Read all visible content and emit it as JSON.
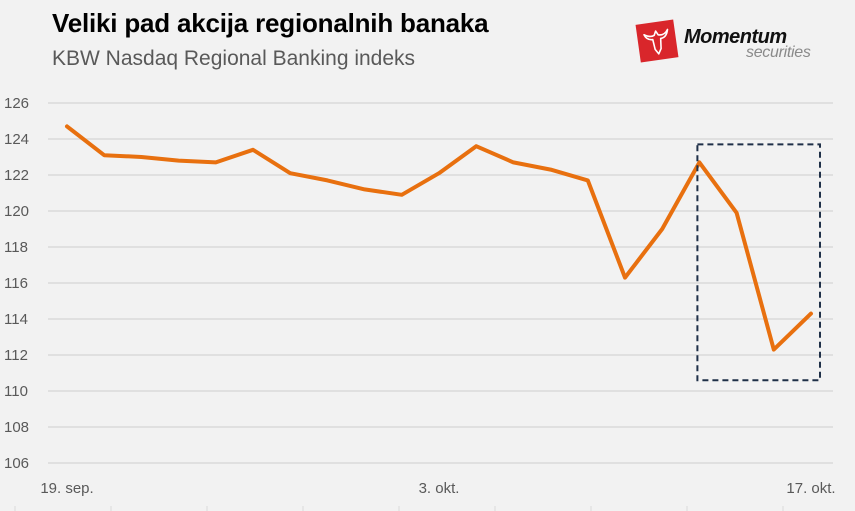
{
  "header": {
    "title": "Veliki pad akcija regionalnih banaka",
    "subtitle": "KBW Nasdaq Regional Banking indeks"
  },
  "logo": {
    "name": "Momentum",
    "sub": "securities",
    "mark_color": "#d9262b"
  },
  "colors": {
    "line": "#e8700f",
    "grid": "#d9d9d9",
    "highlight_box": "#1f3048",
    "background": "#f2f2f2"
  },
  "chart_data": {
    "type": "line",
    "title": "Veliki pad akcija regionalnih banaka",
    "subtitle": "KBW Nasdaq Regional Banking indeks",
    "xlabel": "",
    "ylabel": "",
    "ylim": [
      106,
      126
    ],
    "yticks": [
      106,
      108,
      110,
      112,
      114,
      116,
      118,
      120,
      122,
      124,
      126
    ],
    "grid": true,
    "legend": "none",
    "x_tick_labels": [
      {
        "index": 0,
        "label": "19. sep."
      },
      {
        "index": 10,
        "label": "3. okt."
      },
      {
        "index": 20,
        "label": "17. okt."
      }
    ],
    "series": [
      {
        "name": "KBW Nasdaq Regional Banking indeks",
        "values": [
          124.7,
          123.1,
          123.0,
          122.8,
          122.7,
          123.4,
          122.1,
          121.7,
          121.2,
          120.9,
          122.1,
          123.6,
          122.7,
          122.3,
          121.7,
          116.3,
          119.0,
          122.7,
          119.9,
          112.3,
          114.3
        ]
      }
    ],
    "annotations": [
      {
        "type": "dashed-rectangle",
        "from_index": 17,
        "to_index": 20,
        "y_range": [
          110.6,
          123.7
        ]
      }
    ]
  }
}
